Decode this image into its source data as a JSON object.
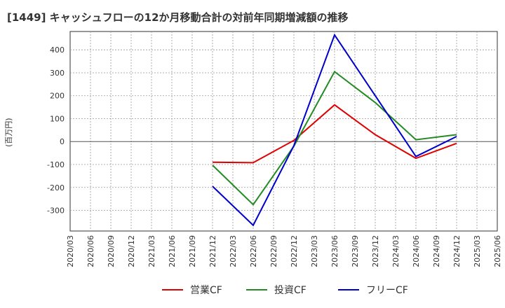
{
  "chart_data": {
    "type": "line",
    "title": "[1449]  キャッシュフローの12か月移動合計の対前年同期増減額の推移",
    "ylabel": "(百万円)",
    "xlabel": "",
    "ylim": [
      -390,
      480
    ],
    "yticks": [
      -300,
      -200,
      -100,
      0,
      100,
      200,
      300,
      400
    ],
    "x": [
      "2020/03",
      "2020/06",
      "2020/09",
      "2020/12",
      "2021/03",
      "2021/06",
      "2021/09",
      "2021/12",
      "2022/03",
      "2022/06",
      "2022/09",
      "2022/12",
      "2023/03",
      "2023/06",
      "2023/09",
      "2023/12",
      "2024/03",
      "2024/06",
      "2024/09",
      "2024/12",
      "2025/03",
      "2025/06"
    ],
    "grid": true,
    "legend_position": "bottom",
    "series": [
      {
        "name": "営業CF",
        "color": "#e00000",
        "values": [
          null,
          null,
          null,
          null,
          null,
          null,
          null,
          -90,
          null,
          -92,
          null,
          5,
          null,
          160,
          null,
          30,
          null,
          -73,
          null,
          -8,
          null,
          null
        ]
      },
      {
        "name": "投資CF",
        "color": "#228b22",
        "values": [
          null,
          null,
          null,
          null,
          null,
          null,
          null,
          -103,
          null,
          -275,
          null,
          -20,
          null,
          305,
          null,
          170,
          null,
          8,
          null,
          30,
          null,
          null
        ]
      },
      {
        "name": "フリーCF",
        "color": "#0000cc",
        "values": [
          null,
          null,
          null,
          null,
          null,
          null,
          null,
          -195,
          null,
          -365,
          null,
          -18,
          null,
          465,
          null,
          200,
          null,
          -65,
          null,
          22,
          null,
          null
        ]
      }
    ]
  }
}
